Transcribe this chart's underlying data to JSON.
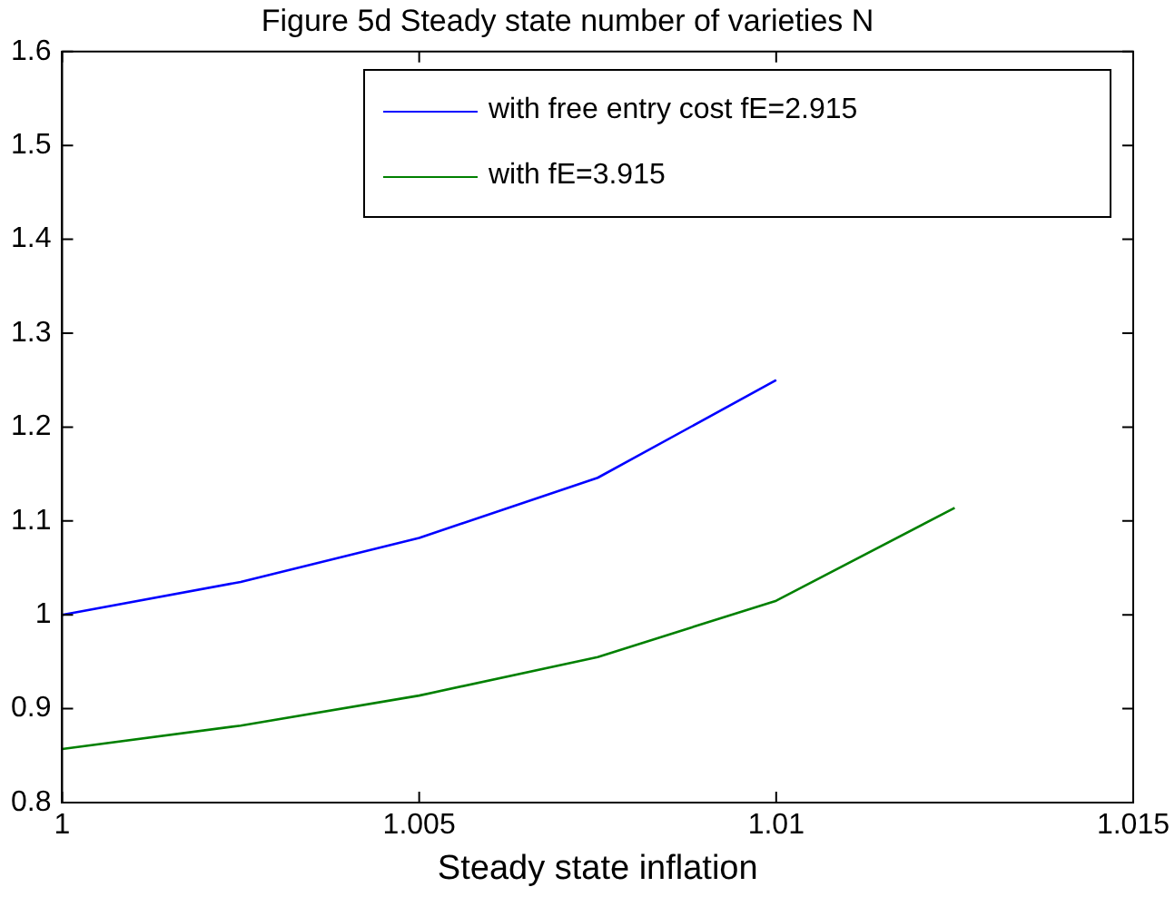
{
  "chart_data": {
    "type": "line",
    "title": "Figure 5d Steady state number of varieties N",
    "xlabel": "Steady state inflation",
    "x": [
      1,
      1.0025,
      1.005,
      1.0075,
      1.01,
      1.0125
    ],
    "series": [
      {
        "name": "with free entry cost fE=2.915",
        "color": "#0000ff",
        "values": [
          1.0,
          1.035,
          1.082,
          1.146,
          1.25,
          null
        ]
      },
      {
        "name": "with fE=3.915",
        "color": "#008000",
        "values": [
          0.857,
          0.882,
          0.914,
          0.955,
          1.015,
          1.114
        ]
      }
    ],
    "xlim": [
      1,
      1.015
    ],
    "xticks": [
      1,
      1.005,
      1.01,
      1.015
    ],
    "ylim": [
      0.8,
      1.6
    ],
    "yticks": [
      0.8,
      0.9,
      1,
      1.1,
      1.2,
      1.3,
      1.4,
      1.5,
      1.6
    ],
    "grid": false,
    "legend": "top right",
    "marker": "none",
    "line_style": "solid"
  }
}
